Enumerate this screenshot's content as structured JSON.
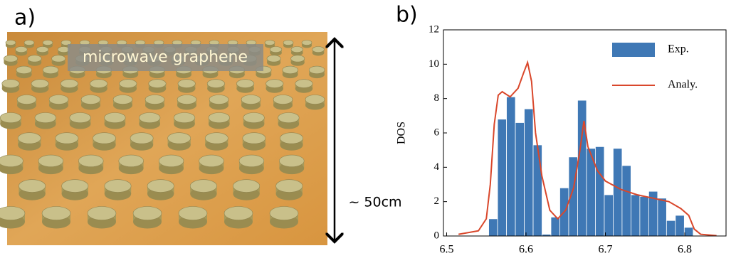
{
  "panel_a": {
    "label": "a)",
    "photo_caption": "microwave graphene",
    "scale_label": "~ 50cm"
  },
  "chart_data": {
    "type": "histogram",
    "panel_label": "b)",
    "ylabel": "DOS",
    "xlim": [
      6.496,
      6.852
    ],
    "xticks": [
      6.5,
      6.6,
      6.7,
      6.8
    ],
    "ylim": [
      0,
      12
    ],
    "yticks": [
      0,
      2,
      4,
      6,
      8,
      10,
      12
    ],
    "legend": "top-right",
    "series": [
      {
        "name": "Exp.",
        "type": "histogram",
        "color": "#3f78b5",
        "bins": [
          6.553,
          6.5642,
          6.5754,
          6.5866,
          6.5978,
          6.609,
          6.6202,
          6.6314,
          6.6426,
          6.6538,
          6.665,
          6.6762,
          6.6874,
          6.6986,
          6.7098,
          6.721,
          6.7322,
          6.7434,
          6.7546,
          6.7658,
          6.777,
          6.7882,
          6.7994,
          6.8106
        ],
        "values": [
          1,
          6.8,
          8.1,
          6.6,
          7.4,
          5.3,
          0.1,
          1.1,
          2.8,
          4.6,
          7.9,
          5.1,
          5.2,
          2.4,
          5.1,
          4.1,
          2.4,
          2.3,
          2.6,
          2.2,
          0.9,
          1.2,
          0.5
        ]
      },
      {
        "name": "Analy.",
        "type": "line",
        "color": "#d9472b",
        "x": [
          6.515,
          6.54,
          6.55,
          6.555,
          6.56,
          6.565,
          6.57,
          6.58,
          6.59,
          6.597,
          6.602,
          6.607,
          6.612,
          6.62,
          6.63,
          6.64,
          6.65,
          6.66,
          6.668,
          6.673,
          6.678,
          6.69,
          6.7,
          6.72,
          6.74,
          6.76,
          6.78,
          6.795,
          6.805,
          6.812,
          6.82,
          6.84
        ],
        "values": [
          0.1,
          0.3,
          1,
          3,
          6.5,
          8.2,
          8.4,
          8.1,
          8.6,
          9.5,
          10.1,
          9,
          6,
          3.5,
          1.5,
          1,
          1.5,
          2.8,
          5,
          6.7,
          5.2,
          3.8,
          3.2,
          2.7,
          2.4,
          2.2,
          2,
          1.6,
          1.2,
          0.4,
          0.1,
          0.02
        ]
      }
    ]
  }
}
